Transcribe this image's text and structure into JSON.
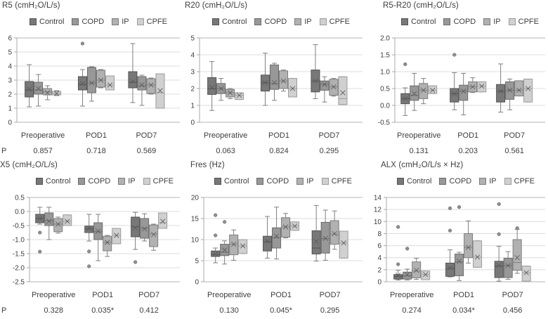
{
  "figure": {
    "p_label": "P",
    "legend_groups": [
      "Control",
      "COPD",
      "IP",
      "CPFE"
    ],
    "group_colors": [
      {
        "name": "Control",
        "fill": "#787878",
        "stroke": "#525252"
      },
      {
        "name": "COPD",
        "fill": "#989898",
        "stroke": "#6b6b6b"
      },
      {
        "name": "IP",
        "fill": "#b1b1b1",
        "stroke": "#7d7d7d"
      },
      {
        "name": "CPFE",
        "fill": "#d0d0d0",
        "stroke": "#9b9b9b"
      }
    ],
    "style_colors": {
      "text": "#3d3d3d",
      "grid": "#dcdcdc",
      "grid_edge": "#b5b5b5",
      "axis": "#a8a8a8",
      "whisker": "#7f7f7f",
      "mean_marker": "#5a5a5a",
      "outlier_fill": "#8d8d8d",
      "outlier_stroke": "#6f6f6f"
    },
    "box_format": [
      "whisker_low",
      "q1",
      "median",
      "q3",
      "whisker_high",
      "mean",
      "outliers"
    ]
  },
  "chart_data": [
    {
      "type": "box",
      "title": "R5 (cmH₂O/L/s)",
      "categories": [
        "Preoperative",
        "POD1",
        "POD7"
      ],
      "legend": [
        "Control",
        "COPD",
        "IP",
        "CPFE"
      ],
      "ylim": [
        0,
        6
      ],
      "ytick_labels": [
        "6",
        "5",
        "4",
        "3",
        "2",
        "1",
        "0"
      ],
      "grid": true,
      "show_p_label": true,
      "p_values": [
        "0.857",
        "0.718",
        "0.569"
      ],
      "boxes": [
        [
          [
            1.1,
            1.8,
            2.3,
            2.9,
            4.1,
            2.35,
            []
          ],
          [
            1.15,
            2.0,
            2.3,
            2.85,
            3.4,
            2.4,
            []
          ],
          [
            1.6,
            1.95,
            2.15,
            2.4,
            2.6,
            2.1,
            []
          ],
          [
            1.9,
            1.95,
            2.05,
            2.2,
            2.25,
            2.05,
            []
          ]
        ],
        [
          [
            1.15,
            2.3,
            2.7,
            3.25,
            3.75,
            2.75,
            [
              5.6
            ]
          ],
          [
            1.5,
            2.1,
            2.8,
            3.9,
            3.95,
            2.8,
            []
          ],
          [
            2.45,
            2.5,
            3.0,
            3.7,
            3.75,
            3.0,
            []
          ],
          [
            2.3,
            2.3,
            2.65,
            3.3,
            3.3,
            2.65,
            []
          ]
        ],
        [
          [
            1.4,
            2.45,
            2.85,
            3.6,
            5.6,
            2.9,
            []
          ],
          [
            1.2,
            2.3,
            2.6,
            3.25,
            3.35,
            2.65,
            []
          ],
          [
            2.0,
            2.05,
            2.65,
            3.1,
            3.15,
            2.65,
            []
          ],
          [
            1.0,
            1.0,
            2.1,
            3.45,
            3.45,
            2.25,
            []
          ]
        ]
      ]
    },
    {
      "type": "box",
      "title": "R20 (cmH₂O/L/s)",
      "categories": [
        "Preoperative",
        "POD1",
        "POD7"
      ],
      "legend": [
        "Control",
        "COPD",
        "IP",
        "CPFE"
      ],
      "ylim": [
        0,
        5
      ],
      "ytick_labels": [
        "5",
        "4",
        "3",
        "2",
        "1",
        "0"
      ],
      "grid": true,
      "show_p_label": false,
      "p_values": [
        "0.063",
        "0.824",
        "0.295"
      ],
      "boxes": [
        [
          [
            0.7,
            1.65,
            2.0,
            2.65,
            3.6,
            2.05,
            []
          ],
          [
            1.3,
            1.7,
            2.0,
            2.3,
            2.6,
            2.0,
            []
          ],
          [
            1.4,
            1.5,
            1.75,
            1.95,
            2.0,
            1.75,
            []
          ],
          [
            1.35,
            1.35,
            1.6,
            1.75,
            1.75,
            1.6,
            []
          ]
        ],
        [
          [
            1.0,
            1.85,
            2.35,
            2.8,
            4.1,
            2.35,
            []
          ],
          [
            1.3,
            1.95,
            2.3,
            3.4,
            3.5,
            2.35,
            []
          ],
          [
            1.85,
            2.0,
            2.45,
            3.05,
            3.1,
            2.45,
            []
          ],
          [
            1.5,
            1.5,
            2.0,
            2.6,
            2.6,
            2.0,
            []
          ]
        ],
        [
          [
            1.4,
            1.8,
            2.45,
            3.1,
            4.6,
            2.45,
            []
          ],
          [
            1.2,
            1.9,
            2.25,
            2.45,
            2.7,
            2.25,
            []
          ],
          [
            1.55,
            1.6,
            2.1,
            2.55,
            2.6,
            2.1,
            []
          ],
          [
            1.05,
            1.05,
            1.4,
            2.7,
            2.7,
            1.75,
            []
          ]
        ]
      ]
    },
    {
      "type": "box",
      "title": "R5-R20 (cmH₂O/L/s)",
      "categories": [
        "Preoperative",
        "POD1",
        "POD7"
      ],
      "legend": [
        "Control",
        "COPD",
        "IP",
        "CPFE"
      ],
      "ylim": [
        -0.5,
        2.0
      ],
      "ytick_labels": [
        "2.0",
        "1.5",
        "1.0",
        "0.5",
        "0.0",
        "-0.5"
      ],
      "grid": true,
      "show_p_label": false,
      "p_values": [
        "0.131",
        "0.203",
        "0.561"
      ],
      "boxes": [
        [
          [
            -0.3,
            0.05,
            0.2,
            0.35,
            0.52,
            0.2,
            [
              1.22
            ]
          ],
          [
            -0.15,
            0.15,
            0.3,
            0.58,
            0.95,
            0.35,
            []
          ],
          [
            0.05,
            0.2,
            0.45,
            0.65,
            0.8,
            0.45,
            []
          ],
          [
            0.35,
            0.35,
            0.45,
            0.58,
            0.58,
            0.45,
            []
          ]
        ],
        [
          [
            -0.13,
            0.1,
            0.35,
            0.5,
            0.97,
            0.35,
            [
              1.5
            ]
          ],
          [
            -0.28,
            0.15,
            0.42,
            0.6,
            0.95,
            0.42,
            []
          ],
          [
            0.38,
            0.4,
            0.55,
            0.7,
            0.82,
            0.55,
            []
          ],
          [
            0.4,
            0.4,
            0.57,
            0.7,
            0.7,
            0.57,
            []
          ]
        ],
        [
          [
            -0.2,
            0.1,
            0.42,
            0.62,
            1.23,
            0.42,
            []
          ],
          [
            -0.13,
            0.18,
            0.45,
            0.7,
            0.78,
            0.45,
            []
          ],
          [
            0.28,
            0.28,
            0.45,
            0.73,
            0.73,
            0.45,
            []
          ],
          [
            0.1,
            0.1,
            0.5,
            0.78,
            0.78,
            0.5,
            []
          ]
        ]
      ]
    },
    {
      "type": "box",
      "title": "X5 (cmH₂O/L/s)",
      "categories": [
        "Preoperative",
        "POD1",
        "POD7"
      ],
      "legend": [
        "Control",
        "COPD",
        "IP",
        "CPFE"
      ],
      "ylim": [
        -2.5,
        0.5
      ],
      "ytick_labels": [
        "0.5",
        "0.0",
        "-0.5",
        "-1.0",
        "-1.5",
        "-2.0",
        "-2.5"
      ],
      "grid": true,
      "show_p_label": true,
      "p_values": [
        "0.328",
        "0.035*",
        "0.412"
      ],
      "boxes": [
        [
          [
            -0.45,
            -0.4,
            -0.25,
            -0.1,
            0.15,
            -0.25,
            [
              -0.75,
              -1.43
            ]
          ],
          [
            -1.0,
            -0.5,
            -0.33,
            -0.05,
            0.15,
            -0.35,
            []
          ],
          [
            -0.77,
            -0.72,
            -0.45,
            -0.25,
            -0.2,
            -0.45,
            []
          ],
          [
            -0.5,
            -0.5,
            -0.35,
            -0.12,
            -0.12,
            -0.35,
            []
          ]
        ],
        [
          [
            -1.05,
            -0.75,
            -0.62,
            -0.52,
            -0.1,
            -0.6,
            [
              -1.42,
              -1.95
            ]
          ],
          [
            -1.75,
            -1.0,
            -0.72,
            -0.4,
            -0.1,
            -0.7,
            []
          ],
          [
            -1.6,
            -1.4,
            -1.1,
            -0.88,
            -0.85,
            -1.1,
            []
          ],
          [
            -1.15,
            -1.15,
            -0.85,
            -0.6,
            -0.6,
            -0.85,
            []
          ]
        ],
        [
          [
            -1.35,
            -0.9,
            -0.55,
            -0.2,
            -0.03,
            -0.58,
            [
              -1.8
            ]
          ],
          [
            -1.05,
            -0.95,
            -0.6,
            -0.25,
            -0.08,
            -0.62,
            []
          ],
          [
            -1.38,
            -1.25,
            -0.8,
            -0.48,
            -0.45,
            -0.82,
            []
          ],
          [
            -0.6,
            -0.6,
            -0.4,
            -0.05,
            -0.05,
            -0.35,
            []
          ]
        ]
      ]
    },
    {
      "type": "box",
      "title": "Fres (Hz)",
      "categories": [
        "Preoperative",
        "POD1",
        "POD7"
      ],
      "legend": [
        "Control",
        "COPD",
        "IP",
        "CPFE"
      ],
      "ylim": [
        0,
        20
      ],
      "ytick_labels": [
        "20",
        "15",
        "10",
        "5",
        "0"
      ],
      "grid": true,
      "show_p_label": false,
      "p_values": [
        "0.130",
        "0.045*",
        "0.295"
      ],
      "boxes": [
        [
          [
            4.5,
            6.0,
            6.5,
            7.3,
            8.0,
            6.6,
            [
              15.8,
              11.0
            ]
          ],
          [
            4.2,
            6.2,
            7.0,
            8.9,
            9.7,
            7.5,
            [
              14.2
            ]
          ],
          [
            5.1,
            6.4,
            8.9,
            11.1,
            12.3,
            8.9,
            []
          ],
          [
            6.7,
            6.7,
            8.5,
            10.0,
            10.0,
            8.5,
            []
          ]
        ],
        [
          [
            5.6,
            7.3,
            9.5,
            10.8,
            15.5,
            9.6,
            []
          ],
          [
            5.4,
            8.0,
            10.5,
            12.8,
            17.7,
            10.8,
            []
          ],
          [
            10.4,
            10.6,
            13.0,
            15.2,
            16.2,
            13.0,
            []
          ],
          [
            12.2,
            12.2,
            13.2,
            14.2,
            14.2,
            13.2,
            []
          ]
        ],
        [
          [
            4.9,
            6.6,
            8.0,
            12.1,
            18.1,
            9.6,
            []
          ],
          [
            5.1,
            6.8,
            10.2,
            14.1,
            17.0,
            10.3,
            []
          ],
          [
            7.7,
            8.9,
            11.3,
            14.5,
            16.8,
            11.4,
            []
          ],
          [
            5.6,
            5.6,
            9.2,
            12.0,
            12.0,
            9.2,
            []
          ]
        ]
      ]
    },
    {
      "type": "box",
      "title": "ALX (cmH₂O/L/s × Hz)",
      "categories": [
        "Preoperative",
        "POD1",
        "POD7"
      ],
      "legend": [
        "Control",
        "COPD",
        "IP",
        "CPFE"
      ],
      "ylim": [
        0,
        14
      ],
      "ytick_labels": [
        "14",
        "12",
        "10",
        "8",
        "6",
        "4",
        "2",
        "0"
      ],
      "grid": true,
      "show_p_label": false,
      "p_values": [
        "0.274",
        "0.034*",
        "0.456"
      ],
      "boxes": [
        [
          [
            0.3,
            0.45,
            0.9,
            1.2,
            1.9,
            1.1,
            [
              2.9,
              9.1
            ]
          ],
          [
            0.3,
            0.45,
            1.0,
            1.6,
            2.1,
            1.2,
            [
              5.5
            ]
          ],
          [
            0.4,
            0.65,
            1.8,
            3.3,
            3.9,
            1.9,
            []
          ],
          [
            0.35,
            0.35,
            1.2,
            1.8,
            1.8,
            1.2,
            []
          ]
        ],
        [
          [
            0.8,
            0.9,
            2.2,
            3.1,
            5.3,
            2.3,
            [
              8.5,
              12.2
            ]
          ],
          [
            0.2,
            1.0,
            3.3,
            4.6,
            4.9,
            3.4,
            [
              12.4
            ]
          ],
          [
            3.1,
            4.0,
            5.7,
            8.0,
            10.1,
            5.7,
            []
          ],
          [
            2.4,
            2.4,
            4.1,
            6.8,
            6.8,
            4.1,
            []
          ]
        ],
        [
          [
            0.1,
            0.7,
            2.6,
            3.4,
            5.9,
            2.7,
            [
              7.9,
              12.9
            ]
          ],
          [
            0.4,
            0.7,
            2.7,
            3.9,
            5.0,
            2.7,
            []
          ],
          [
            1.4,
            1.9,
            3.2,
            7.0,
            8.7,
            4.0,
            [
              8.9
            ]
          ],
          [
            0.1,
            0.1,
            1.5,
            2.6,
            2.6,
            1.5,
            []
          ]
        ]
      ]
    }
  ]
}
